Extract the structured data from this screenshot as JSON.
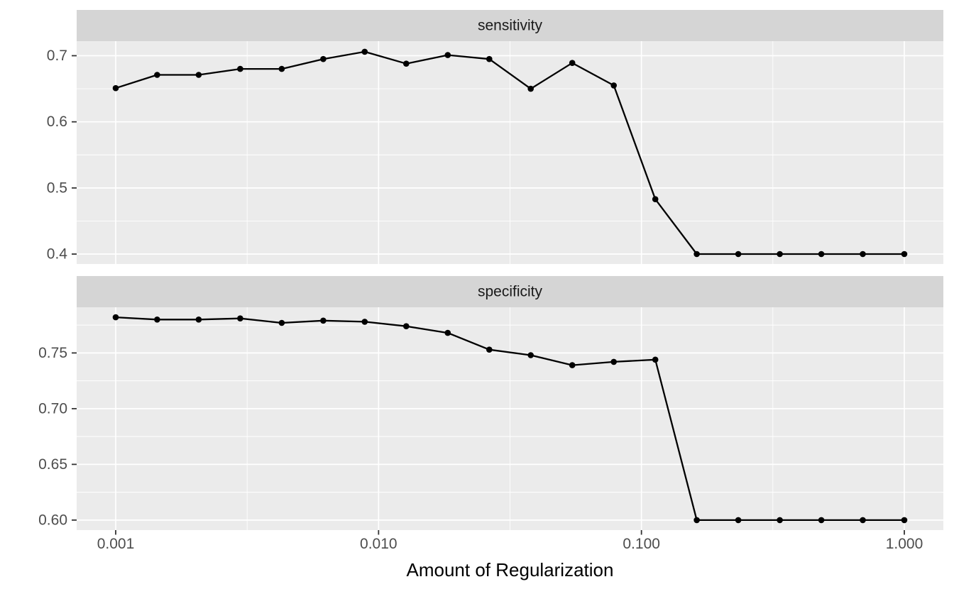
{
  "figure": {
    "title": "",
    "x_axis_title": "Amount of Regularization"
  },
  "chart_data": {
    "type": "line",
    "x_scale": "log10",
    "xlabel": "Amount of Regularization",
    "x": [
      0.001,
      0.001438,
      0.002069,
      0.002976,
      0.004281,
      0.006158,
      0.008859,
      0.012743,
      0.01833,
      0.026367,
      0.037927,
      0.054556,
      0.078476,
      0.112884,
      0.162378,
      0.233572,
      0.335982,
      0.483293,
      0.695193,
      1.0
    ],
    "x_ticks": {
      "values": [
        0.001,
        0.01,
        0.1,
        1.0
      ],
      "labels": [
        "0.001",
        "0.010",
        "0.100",
        "1.000"
      ]
    },
    "x_minor_ticks": [
      0.0031623,
      0.031623,
      0.31623
    ],
    "xlim_log10": [
      -3.1485,
      0.1485
    ],
    "legend": "none",
    "grid": true,
    "facets": [
      {
        "label": "sensitivity",
        "series_name": "sensitivity",
        "values": [
          0.651,
          0.671,
          0.671,
          0.68,
          0.68,
          0.695,
          0.706,
          0.688,
          0.701,
          0.695,
          0.65,
          0.689,
          0.655,
          0.483,
          0.4,
          0.4,
          0.4,
          0.4,
          0.4,
          0.4
        ],
        "y_ticks": {
          "values": [
            0.4,
            0.5,
            0.6,
            0.7
          ],
          "labels": [
            "0.4",
            "0.5",
            "0.6",
            "0.7"
          ]
        },
        "y_minor_ticks": [
          0.45,
          0.55,
          0.65
        ],
        "ylim": [
          0.385,
          0.722
        ]
      },
      {
        "label": "specificity",
        "series_name": "specificity",
        "values": [
          0.782,
          0.78,
          0.78,
          0.781,
          0.777,
          0.779,
          0.778,
          0.774,
          0.768,
          0.753,
          0.748,
          0.739,
          0.742,
          0.744,
          0.6,
          0.6,
          0.6,
          0.6,
          0.6,
          0.6
        ],
        "y_ticks": {
          "values": [
            0.6,
            0.65,
            0.7,
            0.75
          ],
          "labels": [
            "0.60",
            "0.65",
            "0.70",
            "0.75"
          ]
        },
        "y_minor_ticks": [
          0.625,
          0.675,
          0.725,
          0.775
        ],
        "ylim": [
          0.591,
          0.791
        ]
      }
    ],
    "colors": {
      "background": "#FFFFFF",
      "panel_background": "#EBEBEB",
      "strip_background": "#D5D5D5",
      "grid_line": "#FFFFFF",
      "series_line": "#000000",
      "data_point": "#000000",
      "tick_mark": "#333333",
      "axis_text": "#4D4D4D",
      "strip_text": "#1A1A1A",
      "axis_title": "#000000"
    }
  }
}
